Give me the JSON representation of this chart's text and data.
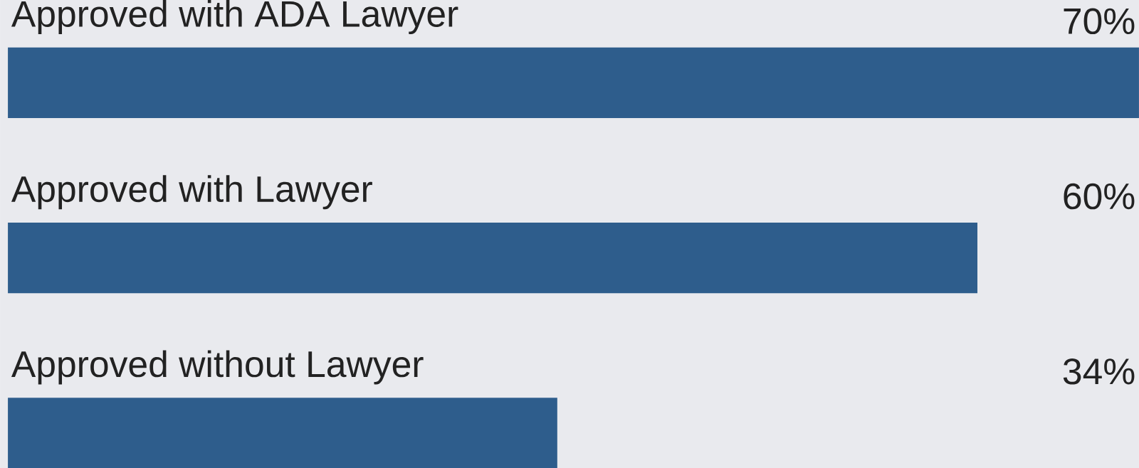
{
  "chart_data": {
    "type": "bar",
    "orientation": "horizontal",
    "categories": [
      "Approved with ADA Lawyer",
      "Approved with Lawyer",
      "Approved without Lawyer"
    ],
    "values": [
      70,
      60,
      34
    ],
    "value_labels": [
      "70%",
      "60%",
      "34%"
    ],
    "color": "#2e5d8c"
  }
}
